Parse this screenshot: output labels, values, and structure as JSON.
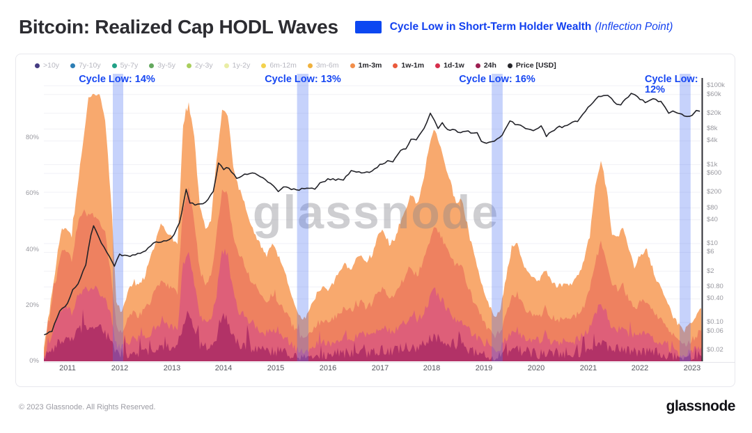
{
  "header": {
    "title": "Bitcoin: Realized Cap HODL Waves",
    "badge_label": "Cycle Low in Short-Term Holder Wealth",
    "badge_suffix": "(Inflection Point)",
    "badge_color": "#0c47f1"
  },
  "watermark": "glassnode",
  "footer": {
    "copyright": "© 2023 Glassnode. All Rights Reserved.",
    "brand": "glassnode"
  },
  "chart_data": {
    "type": "area",
    "stacked": true,
    "title": "Bitcoin: Realized Cap HODL Waves",
    "grid": true,
    "x_axis": {
      "years": [
        "2011",
        "2012",
        "2013",
        "2014",
        "2015",
        "2016",
        "2017",
        "2018",
        "2019",
        "2020",
        "2021",
        "2022",
        "2023"
      ]
    },
    "y_axis_left": {
      "unit": "%",
      "range": [
        0,
        100
      ],
      "ticks": [
        {
          "label": "80%",
          "value": 80
        },
        {
          "label": "60%",
          "value": 60
        },
        {
          "label": "40%",
          "value": 40
        },
        {
          "label": "20%",
          "value": 20
        },
        {
          "label": "0%",
          "value": 0
        }
      ]
    },
    "y_axis_right": {
      "label": "Price [USD]",
      "scale": "log",
      "ticks": [
        {
          "label": "$100k",
          "value": 100000
        },
        {
          "label": "$60k",
          "value": 60000
        },
        {
          "label": "$20k",
          "value": 20000
        },
        {
          "label": "$8k",
          "value": 8000
        },
        {
          "label": "$4k",
          "value": 4000
        },
        {
          "label": "$1k",
          "value": 1000
        },
        {
          "label": "$600",
          "value": 600
        },
        {
          "label": "$200",
          "value": 200
        },
        {
          "label": "$80",
          "value": 80
        },
        {
          "label": "$40",
          "value": 40
        },
        {
          "label": "$10",
          "value": 10
        },
        {
          "label": "$6",
          "value": 6
        },
        {
          "label": "$2",
          "value": 2
        },
        {
          "label": "$0.80",
          "value": 0.8
        },
        {
          "label": "$0.40",
          "value": 0.4
        },
        {
          "label": "$0.10",
          "value": 0.1
        },
        {
          "label": "$0.06",
          "value": 0.06
        },
        {
          "label": "$0.02",
          "value": 0.02
        }
      ]
    },
    "legend": [
      {
        "label": ">10y",
        "color": "#453c82",
        "active": false
      },
      {
        "label": "7y-10y",
        "color": "#2d7eb5",
        "active": false
      },
      {
        "label": "5y-7y",
        "color": "#21a187",
        "active": false
      },
      {
        "label": "3y-5y",
        "color": "#64a85e",
        "active": false
      },
      {
        "label": "2y-3y",
        "color": "#a9ce5d",
        "active": false
      },
      {
        "label": "1y-2y",
        "color": "#e9eda5",
        "active": false
      },
      {
        "label": "6m-12m",
        "color": "#f3d24d",
        "active": false
      },
      {
        "label": "3m-6m",
        "color": "#f0b23e",
        "active": false
      },
      {
        "label": "1m-3m",
        "color": "#f28e4a",
        "active": true
      },
      {
        "label": "1w-1m",
        "color": "#ea5a3c",
        "active": true
      },
      {
        "label": "1d-1w",
        "color": "#d62f4b",
        "active": true
      },
      {
        "label": "24h",
        "color": "#9c1e50",
        "active": true
      },
      {
        "label": "Price [USD]",
        "color": "#26262b",
        "active": true
      }
    ],
    "annotations": [
      {
        "label": "Cycle Low: 14%",
        "band_years": [
          2011.87,
          2012.07
        ],
        "text_year": 2011.95,
        "align": "center"
      },
      {
        "label": "Cycle Low: 13%",
        "band_years": [
          2015.41,
          2015.63
        ],
        "text_year": 2015.52,
        "align": "center"
      },
      {
        "label": "Cycle Low: 16%",
        "band_years": [
          2019.15,
          2019.36
        ],
        "text_year": 2019.25,
        "align": "center"
      },
      {
        "label": "Cycle Low: 12%",
        "band_years": [
          2022.76,
          2022.97
        ],
        "text_year": 2022.8,
        "align": "right-wrap"
      }
    ],
    "band_color": "#4d74f2",
    "series_meta": {
      "x_start_year": 2010.545,
      "x_step_year": 0.107023,
      "unit": "% of realized cap"
    },
    "series": [
      {
        "name": "1m-3m",
        "color": "#f8a96e",
        "values": [
          5,
          18,
          32,
          46,
          48,
          45,
          62,
          78,
          94,
          96,
          96,
          86,
          60,
          22,
          17,
          25,
          28,
          27,
          30,
          36,
          42,
          50,
          46,
          44,
          42,
          85,
          92,
          80,
          55,
          48,
          50,
          72,
          90,
          88,
          70,
          62,
          57,
          50,
          45,
          41,
          38,
          42,
          38,
          33,
          27,
          21,
          16,
          15,
          20,
          24,
          27,
          25,
          28,
          32,
          35,
          33,
          36,
          38,
          35,
          38,
          45,
          47,
          42,
          44,
          50,
          55,
          60,
          56,
          63,
          75,
          83,
          78,
          71,
          64,
          56,
          58,
          48,
          40,
          32,
          25,
          20,
          16,
          19,
          30,
          41,
          42,
          35,
          32,
          30,
          29,
          33,
          29,
          27,
          27,
          27,
          28,
          31,
          36,
          45,
          62,
          72,
          62,
          46,
          44,
          48,
          40,
          34,
          38,
          40,
          35,
          29,
          25,
          21,
          16,
          13,
          11,
          13,
          16,
          19
        ]
      },
      {
        "name": "1w-1m",
        "color": "#ee8160",
        "values": [
          4,
          15,
          27,
          39,
          40,
          36,
          48,
          54,
          52,
          52,
          50,
          46,
          32,
          13,
          10,
          15,
          17,
          16,
          18,
          21,
          25,
          29,
          27,
          26,
          25,
          55,
          62,
          50,
          32,
          28,
          30,
          45,
          62,
          60,
          44,
          38,
          35,
          30,
          27,
          24,
          22,
          24,
          22,
          19,
          15,
          12,
          9,
          8,
          11,
          13,
          15,
          14,
          15,
          17,
          19,
          18,
          20,
          21,
          19,
          21,
          25,
          26,
          23,
          24,
          28,
          30,
          33,
          31,
          35,
          42,
          48,
          46,
          42,
          38,
          34,
          34,
          28,
          22,
          18,
          14,
          11,
          9,
          10,
          17,
          23,
          24,
          20,
          18,
          17,
          16,
          19,
          16,
          15,
          15,
          15,
          16,
          17,
          20,
          26,
          36,
          42,
          36,
          26,
          25,
          27,
          22,
          19,
          21,
          22,
          19,
          16,
          14,
          11,
          9,
          7,
          6,
          7,
          9,
          11
        ]
      },
      {
        "name": "1d-1w",
        "color": "#de5f79",
        "values": [
          2,
          7,
          13,
          19,
          20,
          17,
          23,
          26,
          26,
          26,
          25,
          22,
          16,
          6,
          5,
          7,
          8,
          8,
          9,
          10,
          12,
          14,
          13,
          12,
          12,
          35,
          40,
          28,
          16,
          14,
          15,
          24,
          40,
          38,
          24,
          18,
          17,
          14,
          13,
          11,
          10,
          11,
          10,
          9,
          7,
          5,
          4,
          4,
          5,
          6,
          7,
          6,
          7,
          8,
          9,
          8,
          9,
          10,
          9,
          10,
          12,
          12,
          11,
          11,
          13,
          14,
          16,
          14,
          17,
          21,
          26,
          23,
          20,
          17,
          15,
          15,
          12,
          10,
          8,
          6,
          5,
          4,
          5,
          8,
          11,
          11,
          9,
          8,
          8,
          7,
          9,
          7,
          7,
          7,
          7,
          7,
          8,
          10,
          12,
          17,
          21,
          17,
          12,
          11,
          13,
          10,
          9,
          10,
          10,
          9,
          7,
          7,
          5,
          4,
          3,
          3,
          3,
          4,
          5
        ]
      },
      {
        "name": "24h",
        "color": "#b23267",
        "values": [
          1,
          3,
          5,
          8,
          8,
          7,
          10,
          12,
          12,
          13,
          12,
          10,
          7,
          2.5,
          2,
          3,
          3,
          3,
          3.5,
          4,
          5,
          6,
          5.5,
          5,
          5,
          14,
          18,
          10,
          6,
          5,
          6,
          9,
          17,
          15,
          8,
          6,
          6,
          5,
          4.5,
          4,
          3.5,
          4,
          3.5,
          3,
          2.5,
          2,
          1.5,
          1.5,
          2,
          2,
          2.5,
          2,
          2.5,
          3,
          3,
          3,
          3,
          3.5,
          3,
          3.5,
          4,
          4,
          3.5,
          4,
          4.5,
          5,
          5.5,
          5,
          6,
          7.5,
          9,
          8,
          7,
          6,
          5,
          5.5,
          4.5,
          3.5,
          3,
          2.5,
          2,
          1.5,
          2,
          3,
          4,
          4,
          3,
          3,
          3,
          2.5,
          3.5,
          2.5,
          2.5,
          2.5,
          2.5,
          2.5,
          3,
          3.5,
          4.5,
          6,
          7,
          5.5,
          4,
          4.5,
          4.5,
          3.5,
          3,
          3,
          3.5,
          3.5,
          3,
          2.5,
          2,
          1.5,
          1.2,
          1,
          1.2,
          1.5,
          2
        ]
      }
    ],
    "price": {
      "name": "Price [USD]",
      "color": "#222228",
      "points": [
        [
          2010.55,
          0.05
        ],
        [
          2010.7,
          0.06
        ],
        [
          2010.85,
          0.2
        ],
        [
          2011.0,
          0.3
        ],
        [
          2011.1,
          0.7
        ],
        [
          2011.2,
          0.9
        ],
        [
          2011.35,
          3
        ],
        [
          2011.45,
          17
        ],
        [
          2011.5,
          29
        ],
        [
          2011.6,
          14
        ],
        [
          2011.75,
          6
        ],
        [
          2011.9,
          2.8
        ],
        [
          2012.0,
          5.2
        ],
        [
          2012.15,
          4.9
        ],
        [
          2012.3,
          5.1
        ],
        [
          2012.5,
          6.8
        ],
        [
          2012.65,
          10.5
        ],
        [
          2012.8,
          11
        ],
        [
          2013.0,
          13.3
        ],
        [
          2013.15,
          33
        ],
        [
          2013.28,
          230
        ],
        [
          2013.35,
          110
        ],
        [
          2013.5,
          95
        ],
        [
          2013.65,
          110
        ],
        [
          2013.8,
          200
        ],
        [
          2013.9,
          1100
        ],
        [
          2014.0,
          780
        ],
        [
          2014.1,
          830
        ],
        [
          2014.25,
          450
        ],
        [
          2014.4,
          580
        ],
        [
          2014.55,
          620
        ],
        [
          2014.7,
          500
        ],
        [
          2014.85,
          370
        ],
        [
          2015.05,
          215
        ],
        [
          2015.15,
          270
        ],
        [
          2015.3,
          245
        ],
        [
          2015.45,
          230
        ],
        [
          2015.6,
          265
        ],
        [
          2015.75,
          235
        ],
        [
          2015.85,
          330
        ],
        [
          2016.0,
          430
        ],
        [
          2016.15,
          415
        ],
        [
          2016.3,
          420
        ],
        [
          2016.45,
          680
        ],
        [
          2016.55,
          660
        ],
        [
          2016.7,
          610
        ],
        [
          2016.85,
          700
        ],
        [
          2017.0,
          970
        ],
        [
          2017.15,
          1200
        ],
        [
          2017.25,
          1150
        ],
        [
          2017.4,
          2400
        ],
        [
          2017.5,
          2600
        ],
        [
          2017.6,
          4300
        ],
        [
          2017.7,
          4100
        ],
        [
          2017.8,
          6500
        ],
        [
          2017.9,
          11500
        ],
        [
          2017.97,
          19200
        ],
        [
          2018.05,
          13500
        ],
        [
          2018.12,
          8300
        ],
        [
          2018.2,
          11300
        ],
        [
          2018.3,
          8000
        ],
        [
          2018.45,
          7400
        ],
        [
          2018.55,
          6300
        ],
        [
          2018.65,
          7200
        ],
        [
          2018.75,
          6400
        ],
        [
          2018.87,
          6300
        ],
        [
          2018.95,
          3800
        ],
        [
          2019.05,
          3600
        ],
        [
          2019.2,
          4000
        ],
        [
          2019.35,
          5400
        ],
        [
          2019.5,
          12800
        ],
        [
          2019.6,
          10500
        ],
        [
          2019.7,
          10000
        ],
        [
          2019.8,
          8200
        ],
        [
          2019.95,
          7200
        ],
        [
          2020.1,
          9500
        ],
        [
          2020.2,
          5300
        ],
        [
          2020.3,
          6800
        ],
        [
          2020.45,
          9100
        ],
        [
          2020.55,
          9200
        ],
        [
          2020.7,
          11500
        ],
        [
          2020.8,
          13000
        ],
        [
          2020.9,
          18000
        ],
        [
          2021.0,
          29000
        ],
        [
          2021.1,
          38000
        ],
        [
          2021.2,
          52000
        ],
        [
          2021.3,
          59000
        ],
        [
          2021.38,
          57000
        ],
        [
          2021.45,
          46000
        ],
        [
          2021.55,
          34000
        ],
        [
          2021.63,
          32000
        ],
        [
          2021.72,
          46000
        ],
        [
          2021.83,
          64000
        ],
        [
          2021.9,
          57000
        ],
        [
          2022.0,
          46500
        ],
        [
          2022.1,
          38500
        ],
        [
          2022.2,
          44000
        ],
        [
          2022.3,
          45000
        ],
        [
          2022.4,
          38000
        ],
        [
          2022.48,
          29500
        ],
        [
          2022.55,
          20000
        ],
        [
          2022.63,
          23000
        ],
        [
          2022.72,
          19800
        ],
        [
          2022.8,
          19500
        ],
        [
          2022.9,
          16200
        ],
        [
          2023.0,
          16800
        ],
        [
          2023.08,
          23000
        ],
        [
          2023.15,
          22500
        ]
      ]
    }
  }
}
